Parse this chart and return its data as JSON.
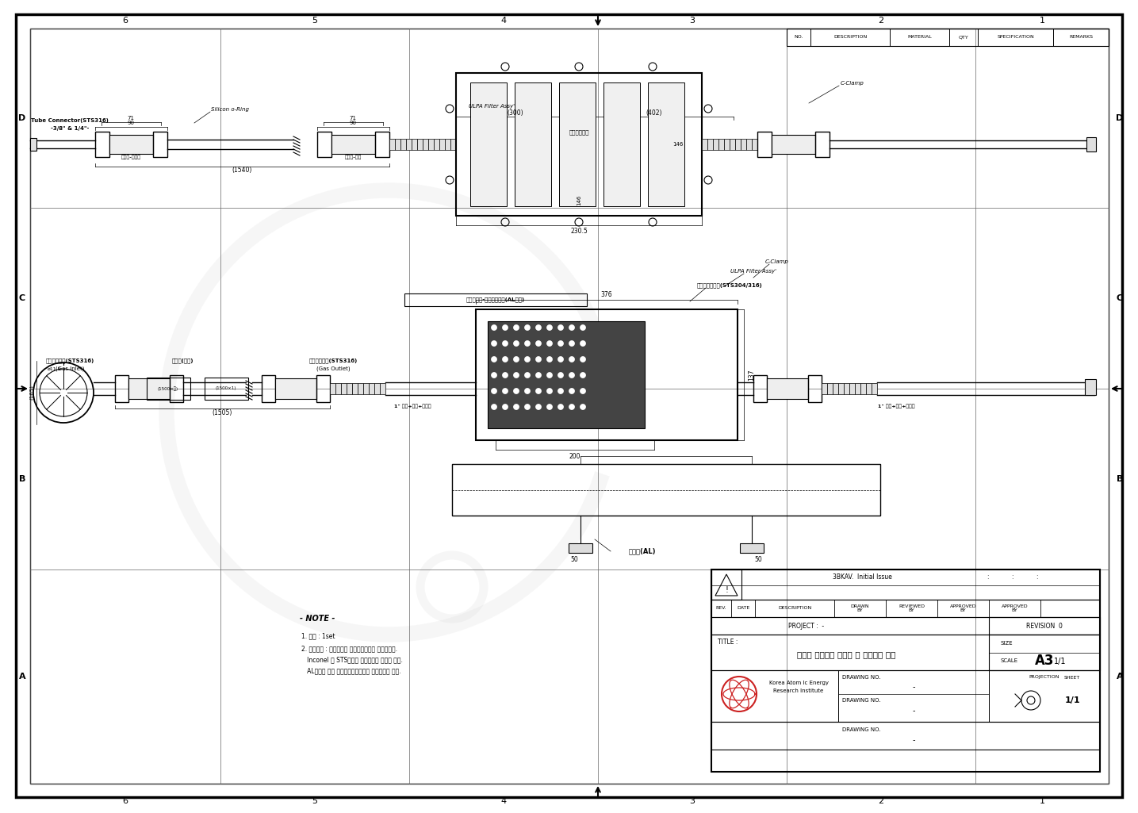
{
  "bg_color": "#ffffff",
  "line_color": "#000000",
  "gray_fill": "#e8e8e8",
  "dark_fill": "#555555",
  "light_fill": "#f0f0f0",
  "title": "공학적 설계기반 요오드 및 응축포집 장치",
  "col_labels": [
    "6",
    "5",
    "4",
    "3",
    "2",
    "1"
  ],
  "row_labels": [
    "D",
    "C",
    "B",
    "A"
  ],
  "note_lines": [
    "- NOTE -",
    "1. 수량 : 1set",
    "2. 표면처리 : 모든부품은 아세톤세정으로 마무리할것.",
    "   Inconel 및 STS부품은 산세정으로 마무리 할것.",
    "   AL부품은 백색 경질아노다이징으로 표면마무리 할것."
  ]
}
